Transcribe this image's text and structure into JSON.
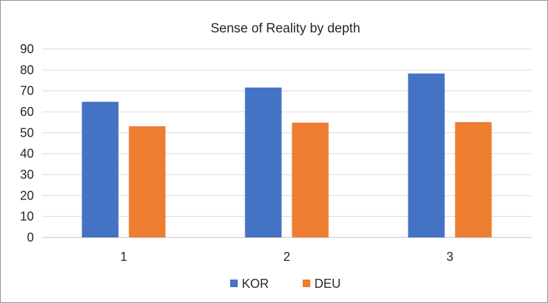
{
  "chart_data": {
    "type": "bar",
    "title": "Sense of Reality by depth",
    "xlabel": "",
    "ylabel": "",
    "categories": [
      "1",
      "2",
      "3"
    ],
    "series": [
      {
        "name": "KOR",
        "color": "#4472C4",
        "values": [
          64.8,
          71.6,
          78.3
        ]
      },
      {
        "name": "DEU",
        "color": "#ED7D31",
        "values": [
          53.1,
          54.8,
          55.1
        ]
      }
    ],
    "ylim": [
      0,
      90
    ],
    "yticks": [
      "0",
      "10",
      "20",
      "30",
      "40",
      "50",
      "60",
      "70",
      "80",
      "90"
    ],
    "grid": true,
    "legend": "bottom"
  }
}
